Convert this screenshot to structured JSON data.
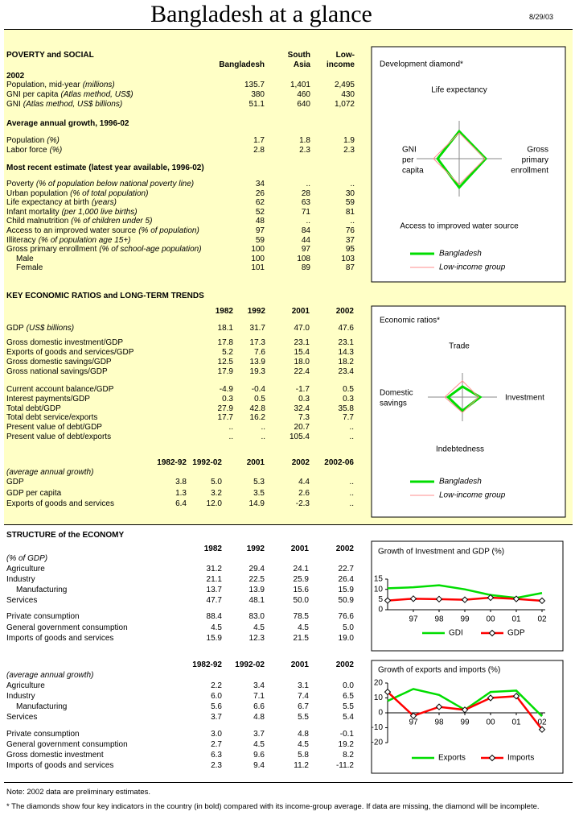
{
  "header": {
    "title": "Bangladesh at a glance",
    "date": "8/29/03"
  },
  "poverty": {
    "heading": "POVERTY and SOCIAL",
    "columns": [
      [
        "Bangladesh"
      ],
      [
        "South",
        "Asia"
      ],
      [
        "Low-",
        "income"
      ]
    ],
    "groups": [
      {
        "title": "2002",
        "rows": [
          {
            "label": "Population, mid-year",
            "note": "(millions)",
            "values": [
              "135.7",
              "1,401",
              "2,495"
            ]
          },
          {
            "label": "GNI per capita",
            "note": "(Atlas method, US$)",
            "values": [
              "380",
              "460",
              "430"
            ]
          },
          {
            "label": "GNI",
            "note": "(Atlas method, US$ billions)",
            "values": [
              "51.1",
              "640",
              "1,072"
            ]
          }
        ]
      },
      {
        "title": "Average annual growth, 1996-02",
        "rows": [
          {
            "label": "Population",
            "note": "(%)",
            "values": [
              "1.7",
              "1.8",
              "1.9"
            ]
          },
          {
            "label": "Labor force",
            "note": "(%)",
            "values": [
              "2.8",
              "2.3",
              "2.3"
            ]
          }
        ]
      },
      {
        "title": "Most recent estimate (latest year available, 1996-02)",
        "rows": [
          {
            "label": "Poverty",
            "note": "(% of population below national poverty line)",
            "values": [
              "34",
              "..",
              ".."
            ]
          },
          {
            "label": "Urban population",
            "note": "(% of total population)",
            "values": [
              "26",
              "28",
              "30"
            ]
          },
          {
            "label": "Life expectancy at birth",
            "note": "(years)",
            "values": [
              "62",
              "63",
              "59"
            ]
          },
          {
            "label": "Infant mortality",
            "note": "(per 1,000 live births)",
            "values": [
              "52",
              "71",
              "81"
            ]
          },
          {
            "label": "Child malnutrition",
            "note": "(% of children under 5)",
            "values": [
              "48",
              "..",
              ".."
            ]
          },
          {
            "label": "Access to an improved water source",
            "note": "(% of population)",
            "values": [
              "97",
              "84",
              "76"
            ]
          },
          {
            "label": "Illiteracy",
            "note": "(% of population age 15+)",
            "values": [
              "59",
              "44",
              "37"
            ]
          },
          {
            "label": "Gross primary enrollment",
            "note": "(% of school-age population)",
            "values": [
              "100",
              "97",
              "95"
            ]
          },
          {
            "label": "Male",
            "indent": true,
            "values": [
              "100",
              "108",
              "103"
            ]
          },
          {
            "label": "Female",
            "indent": true,
            "values": [
              "101",
              "89",
              "87"
            ]
          }
        ]
      }
    ]
  },
  "trends": {
    "heading": "KEY ECONOMIC RATIOS and LONG-TERM TRENDS",
    "tables": [
      {
        "columns": [
          "1982",
          "1992",
          "2001",
          "2002"
        ],
        "groups": [
          {
            "rows": [
              {
                "label": "GDP",
                "note": "(US$ billions)",
                "values": [
                  "18.1",
                  "31.7",
                  "47.0",
                  "47.6"
                ]
              }
            ]
          },
          {
            "rows": [
              {
                "label": "Gross domestic investment/GDP",
                "values": [
                  "17.8",
                  "17.3",
                  "23.1",
                  "23.1"
                ]
              },
              {
                "label": "Exports of goods and services/GDP",
                "values": [
                  "5.2",
                  "7.6",
                  "15.4",
                  "14.3"
                ]
              },
              {
                "label": "Gross domestic savings/GDP",
                "values": [
                  "12.5",
                  "13.9",
                  "18.0",
                  "18.2"
                ]
              },
              {
                "label": "Gross national savings/GDP",
                "values": [
                  "17.9",
                  "19.3",
                  "22.4",
                  "23.4"
                ]
              }
            ]
          },
          {
            "rows": [
              {
                "label": "Current account balance/GDP",
                "values": [
                  "-4.9",
                  "-0.4",
                  "-1.7",
                  "0.5"
                ]
              },
              {
                "label": "Interest payments/GDP",
                "values": [
                  "0.3",
                  "0.5",
                  "0.3",
                  "0.3"
                ]
              },
              {
                "label": "Total debt/GDP",
                "values": [
                  "27.9",
                  "42.8",
                  "32.4",
                  "35.8"
                ]
              },
              {
                "label": "Total debt service/exports",
                "values": [
                  "17.7",
                  "16.2",
                  "7.3",
                  "7.7"
                ]
              },
              {
                "label": "Present value of debt/GDP",
                "values": [
                  "..",
                  "..",
                  "20.7",
                  ".."
                ]
              },
              {
                "label": "Present value of debt/exports",
                "values": [
                  "..",
                  "..",
                  "105.4",
                  ".."
                ]
              }
            ]
          }
        ]
      },
      {
        "columns": [
          "1982-92",
          "1992-02",
          "2001",
          "2002",
          "2002-06"
        ],
        "groups": [
          {
            "title": "(average annual growth)",
            "rows": [
              {
                "label": "GDP",
                "values": [
                  "3.8",
                  "5.0",
                  "5.3",
                  "4.4",
                  ".."
                ]
              },
              {
                "label": "GDP per capita",
                "values": [
                  "1.3",
                  "3.2",
                  "3.5",
                  "2.6",
                  ".."
                ]
              },
              {
                "label": "Exports of goods and services",
                "values": [
                  "6.4",
                  "12.0",
                  "14.9",
                  "-2.3",
                  ".."
                ]
              }
            ]
          }
        ]
      }
    ]
  },
  "structure": {
    "heading": "STRUCTURE of the ECONOMY",
    "tables": [
      {
        "columns": [
          "1982",
          "1992",
          "2001",
          "2002"
        ],
        "groups": [
          {
            "title": "(% of GDP)",
            "rows": [
              {
                "label": "Agriculture",
                "values": [
                  "31.2",
                  "29.4",
                  "24.1",
                  "22.7"
                ]
              },
              {
                "label": "Industry",
                "values": [
                  "21.1",
                  "22.5",
                  "25.9",
                  "26.4"
                ]
              },
              {
                "label": "Manufacturing",
                "indent": true,
                "values": [
                  "13.7",
                  "13.9",
                  "15.6",
                  "15.9"
                ]
              },
              {
                "label": "Services",
                "values": [
                  "47.7",
                  "48.1",
                  "50.0",
                  "50.9"
                ]
              }
            ]
          },
          {
            "rows": [
              {
                "label": "Private consumption",
                "values": [
                  "88.4",
                  "83.0",
                  "78.5",
                  "76.6"
                ]
              },
              {
                "label": "General government consumption",
                "values": [
                  "4.5",
                  "4.5",
                  "4.5",
                  "5.0"
                ]
              },
              {
                "label": "Imports of goods and services",
                "values": [
                  "15.9",
                  "12.3",
                  "21.5",
                  "19.0"
                ]
              }
            ]
          }
        ]
      },
      {
        "columns": [
          "1982-92",
          "1992-02",
          "2001",
          "2002"
        ],
        "groups": [
          {
            "title": "(average annual growth)",
            "rows": [
              {
                "label": "Agriculture",
                "values": [
                  "2.2",
                  "3.4",
                  "3.1",
                  "0.0"
                ]
              },
              {
                "label": "Industry",
                "values": [
                  "6.0",
                  "7.1",
                  "7.4",
                  "6.5"
                ]
              },
              {
                "label": "Manufacturing",
                "indent": true,
                "values": [
                  "5.6",
                  "6.6",
                  "6.7",
                  "5.5"
                ]
              },
              {
                "label": "Services",
                "values": [
                  "3.7",
                  "4.8",
                  "5.5",
                  "5.4"
                ]
              }
            ]
          },
          {
            "rows": [
              {
                "label": "Private consumption",
                "values": [
                  "3.0",
                  "3.7",
                  "4.8",
                  "-0.1"
                ]
              },
              {
                "label": "General government consumption",
                "values": [
                  "2.7",
                  "4.5",
                  "4.5",
                  "19.2"
                ]
              },
              {
                "label": "Gross domestic investment",
                "values": [
                  "6.3",
                  "9.6",
                  "5.8",
                  "8.2"
                ]
              },
              {
                "label": "Imports of goods and services",
                "values": [
                  "2.3",
                  "9.4",
                  "11.2",
                  "-11.2"
                ]
              }
            ]
          }
        ]
      }
    ]
  },
  "notes": [
    "Note: 2002 data are preliminary estimates.",
    "* The diamonds show four key indicators in the country (in bold) compared with its income-group average. If data are missing, the diamond will be incomplete."
  ],
  "chart_data": [
    {
      "type": "radar",
      "title": "Development diamond*",
      "axes": [
        [
          "Life expectancy"
        ],
        [
          "Gross",
          "primary",
          "enrollment"
        ],
        [
          "Access to improved water source"
        ],
        [
          "GNI",
          "per",
          "capita"
        ]
      ],
      "rlim": [
        0,
        150
      ],
      "series": [
        {
          "name": "Bangladesh",
          "color": "#00dd00",
          "values": [
            106,
            103,
            112,
            84
          ]
        },
        {
          "name": "Low-income group",
          "color": "#ff8c8c",
          "values": [
            100,
            100,
            100,
            100
          ]
        }
      ]
    },
    {
      "type": "radar",
      "title": "Economic ratios*",
      "axes": [
        [
          "Trade"
        ],
        [
          "Investment"
        ],
        [
          "Indebtedness"
        ],
        [
          "Domestic",
          "savings"
        ]
      ],
      "rlim": [
        0,
        150
      ],
      "series": [
        {
          "name": "Bangladesh",
          "color": "#00dd00",
          "values": [
            41,
            69,
            53,
            56
          ]
        },
        {
          "name": "Low-income group",
          "color": "#ff8c8c",
          "values": [
            63,
            63,
            60,
            69
          ]
        }
      ]
    },
    {
      "type": "line",
      "title": "Growth of Investment and GDP (%)",
      "categories": [
        null,
        "97",
        "98",
        "99",
        "00",
        "01",
        "02"
      ],
      "ylim": [
        0,
        15
      ],
      "yticks": [
        0,
        5,
        10,
        15
      ],
      "series": [
        {
          "name": "GDI",
          "color": "#00dd00",
          "values": [
            10.5,
            11,
            12,
            10,
            7.2,
            5.8,
            8.2
          ]
        },
        {
          "name": "GDP",
          "color": "#ff0000",
          "marker": "diamond",
          "values": [
            4.5,
            5.4,
            5.2,
            4.9,
            5.9,
            5.3,
            4.4
          ]
        }
      ]
    },
    {
      "type": "line",
      "title": "Growth of exports and imports (%)",
      "categories": [
        null,
        "97",
        "98",
        "99",
        "00",
        "01",
        "02"
      ],
      "ylim": [
        -20,
        20
      ],
      "yticks": [
        -20,
        -10,
        0,
        10,
        20
      ],
      "series": [
        {
          "name": "Exports",
          "color": "#00dd00",
          "values": [
            8,
            16,
            12,
            2,
            14,
            14.9,
            -2.3
          ]
        },
        {
          "name": "Imports",
          "color": "#ff0000",
          "marker": "diamond",
          "values": [
            14,
            -2,
            4,
            2,
            10,
            11.2,
            -11.2
          ]
        }
      ]
    }
  ]
}
